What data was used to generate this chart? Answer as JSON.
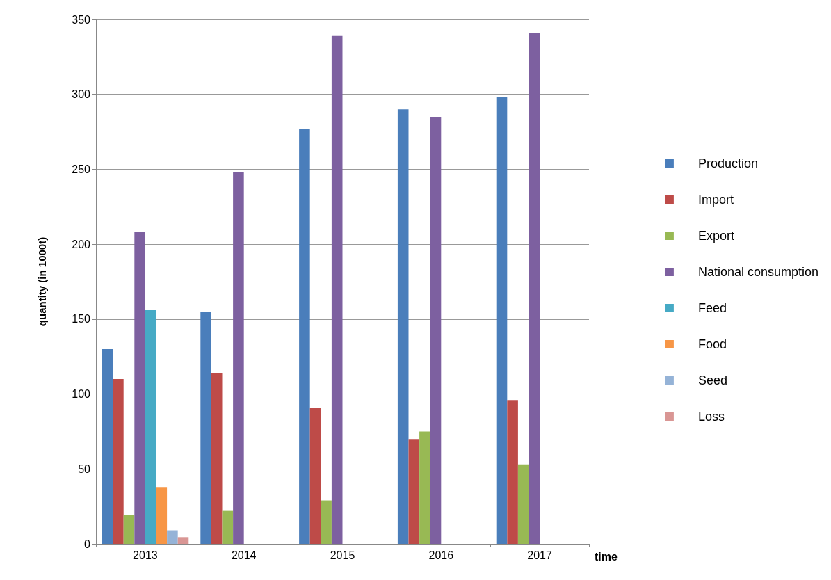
{
  "chart_data": {
    "type": "bar",
    "xlabel": "time",
    "ylabel": "quantity (in 1000t)",
    "categories": [
      "2013",
      "2014",
      "2015",
      "2016",
      "2017"
    ],
    "series": [
      {
        "name": "Production",
        "color": "#4a7ebb",
        "values": [
          130,
          155,
          277,
          290,
          298
        ]
      },
      {
        "name": "Import",
        "color": "#be4b48",
        "values": [
          110,
          114,
          91,
          70,
          96
        ]
      },
      {
        "name": "Export",
        "color": "#98b954",
        "values": [
          19,
          22,
          29,
          75,
          53
        ]
      },
      {
        "name": "National consumption",
        "color": "#7d60a0",
        "values": [
          208,
          248,
          339,
          285,
          341
        ]
      },
      {
        "name": "Feed",
        "color": "#46aac5",
        "values": [
          156,
          null,
          null,
          null,
          null
        ]
      },
      {
        "name": "Food",
        "color": "#f79646",
        "values": [
          38,
          null,
          null,
          null,
          null
        ]
      },
      {
        "name": "Seed",
        "color": "#95b3d7",
        "values": [
          9,
          null,
          null,
          null,
          null
        ]
      },
      {
        "name": "Loss",
        "color": "#d99694",
        "values": [
          4.5,
          null,
          null,
          null,
          null
        ]
      }
    ],
    "ylim": [
      0,
      350
    ],
    "yticks": [
      0,
      50,
      100,
      150,
      200,
      250,
      300,
      350
    ],
    "grid": "y",
    "legend": "right"
  }
}
